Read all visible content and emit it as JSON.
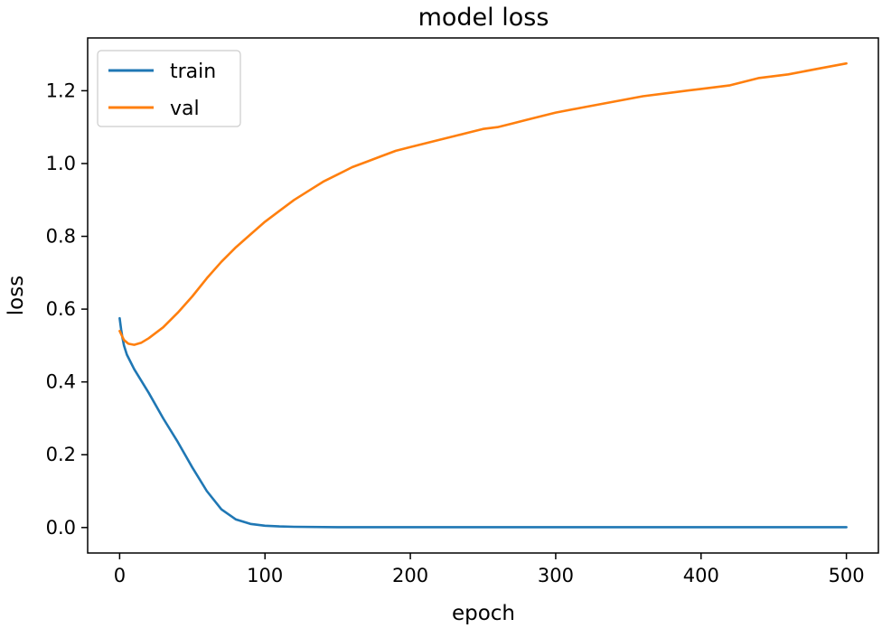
{
  "chart_data": {
    "type": "line",
    "title": "model loss",
    "xlabel": "epoch",
    "ylabel": "loss",
    "xlim": [
      -22,
      522
    ],
    "ylim": [
      -0.07,
      1.345
    ],
    "xticks": [
      0,
      100,
      200,
      300,
      400,
      500
    ],
    "xtick_labels": [
      "0",
      "100",
      "200",
      "300",
      "400",
      "500"
    ],
    "yticks": [
      0.0,
      0.2,
      0.4,
      0.6,
      0.8,
      1.0,
      1.2
    ],
    "ytick_labels": [
      "0.0",
      "0.2",
      "0.4",
      "0.6",
      "0.8",
      "1.0",
      "1.2"
    ],
    "legend_position": "top-left",
    "grid": false,
    "series": [
      {
        "name": "train",
        "color": "#1f77b4",
        "x": [
          0,
          1,
          2,
          3,
          5,
          10,
          20,
          30,
          40,
          50,
          60,
          70,
          80,
          90,
          100,
          110,
          120,
          150,
          200,
          300,
          400,
          500
        ],
        "values": [
          0.575,
          0.545,
          0.52,
          0.5,
          0.475,
          0.435,
          0.37,
          0.3,
          0.235,
          0.165,
          0.1,
          0.05,
          0.022,
          0.01,
          0.005,
          0.003,
          0.002,
          0.001,
          0.001,
          0.001,
          0.001,
          0.001
        ]
      },
      {
        "name": "val",
        "color": "#ff7f0e",
        "x": [
          0,
          3,
          6,
          10,
          15,
          20,
          30,
          40,
          50,
          60,
          70,
          80,
          90,
          100,
          110,
          120,
          130,
          140,
          150,
          160,
          170,
          180,
          190,
          200,
          210,
          220,
          230,
          240,
          250,
          260,
          270,
          280,
          290,
          300,
          320,
          340,
          360,
          380,
          400,
          420,
          440,
          460,
          480,
          500
        ],
        "values": [
          0.54,
          0.515,
          0.505,
          0.502,
          0.508,
          0.52,
          0.55,
          0.59,
          0.635,
          0.685,
          0.73,
          0.77,
          0.805,
          0.84,
          0.87,
          0.9,
          0.925,
          0.95,
          0.97,
          0.99,
          1.005,
          1.02,
          1.035,
          1.045,
          1.055,
          1.065,
          1.075,
          1.085,
          1.095,
          1.1,
          1.11,
          1.12,
          1.13,
          1.14,
          1.155,
          1.17,
          1.185,
          1.195,
          1.205,
          1.215,
          1.235,
          1.245,
          1.26,
          1.275
        ]
      }
    ]
  }
}
